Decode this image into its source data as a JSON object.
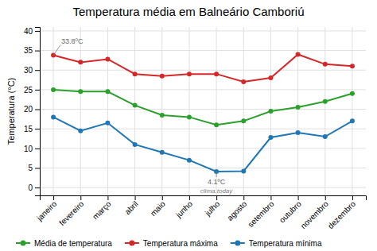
{
  "chart_data": {
    "type": "line",
    "title": "Temperatura média em Balneário Camboriú",
    "ylabel": "Temperatura (°C)",
    "categories": [
      "janeiro",
      "fevereiro",
      "março",
      "abril",
      "maio",
      "junho",
      "julho",
      "agosto",
      "setembro",
      "outubro",
      "novembro",
      "dezembro"
    ],
    "series": [
      {
        "name": "Média de temperatura",
        "color": "#2ca02c",
        "values": [
          25.0,
          24.5,
          24.5,
          21.0,
          18.5,
          18.0,
          16.0,
          17.0,
          19.5,
          20.5,
          22.0,
          24.0
        ]
      },
      {
        "name": "Temperatura máxima",
        "color": "#d62728",
        "values": [
          33.8,
          32.0,
          32.8,
          29.0,
          28.5,
          29.0,
          29.0,
          27.0,
          28.0,
          34.0,
          31.5,
          31.0
        ]
      },
      {
        "name": "Temperatura mínima",
        "color": "#1f77b4",
        "values": [
          18.0,
          14.5,
          16.5,
          11.0,
          9.0,
          7.0,
          4.1,
          4.2,
          12.8,
          14.0,
          13.0,
          17.0
        ]
      }
    ],
    "ylim": [
      -2,
      41
    ],
    "yticks": [
      0,
      5,
      10,
      15,
      20,
      25,
      30,
      35,
      40
    ],
    "grid": true,
    "marker": "circle",
    "line_style": "solid",
    "legend": "lower left",
    "annotations": [
      {
        "text": "33.8ºC",
        "category": "janeiro",
        "series": "Temperatura máxima"
      },
      {
        "text": "4.1ºC",
        "category": "julho",
        "series": "Temperatura mínima"
      },
      {
        "text": "clima.today",
        "category": "julho"
      }
    ]
  }
}
